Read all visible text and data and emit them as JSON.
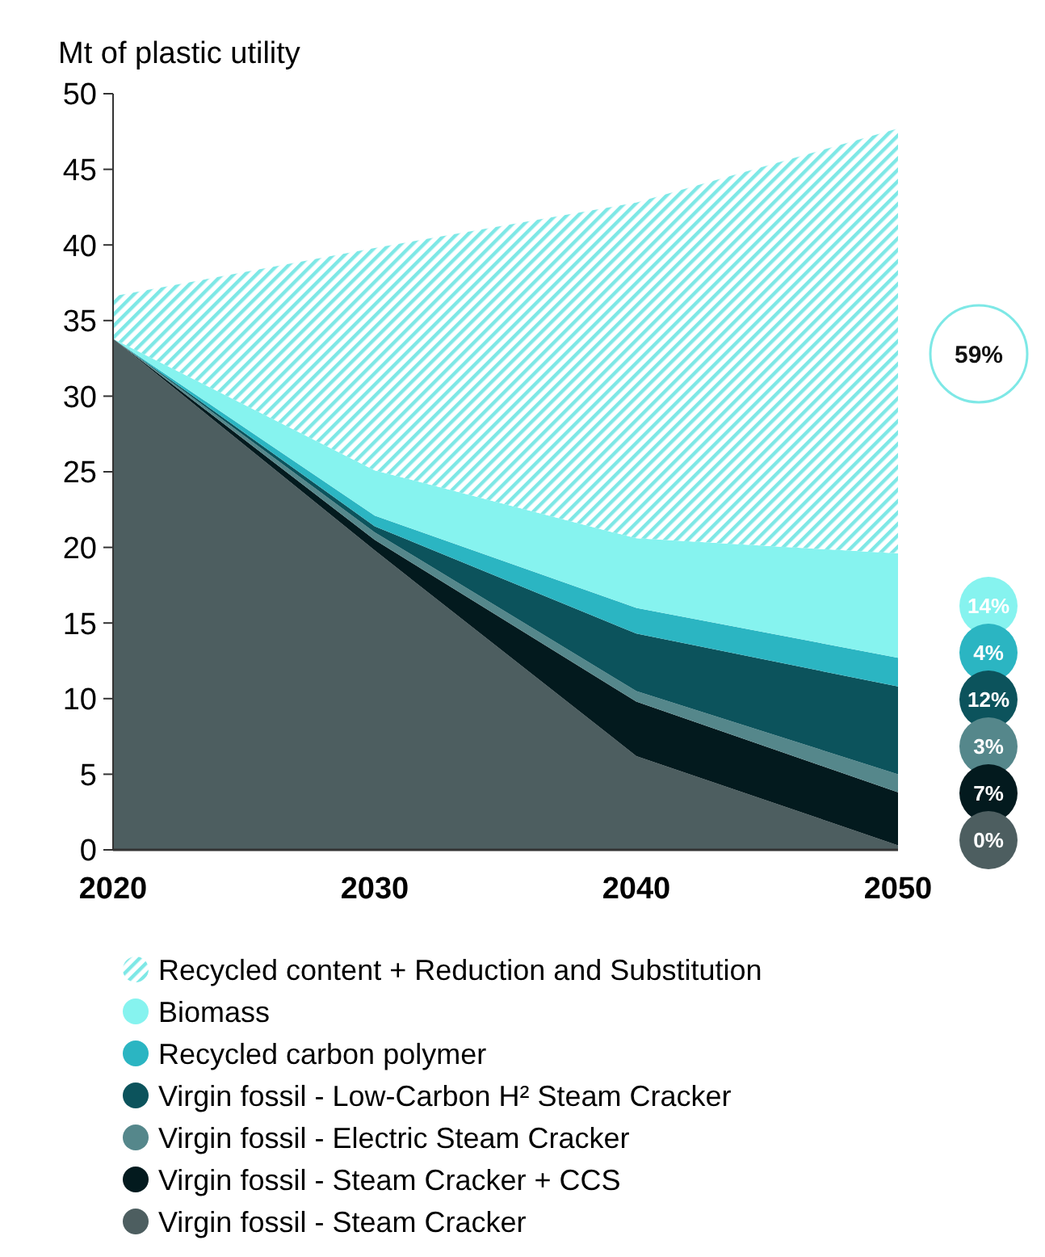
{
  "chart_data": {
    "type": "area",
    "stacked": true,
    "ylabel": "Mt of plastic utility",
    "x": [
      2020,
      2030,
      2040,
      2050
    ],
    "xlim": [
      2020,
      2050
    ],
    "xticks": [
      2020,
      2030,
      2040,
      2050
    ],
    "ylim": [
      0,
      50
    ],
    "yticks": [
      0,
      5,
      10,
      15,
      20,
      25,
      30,
      35,
      40,
      45,
      50
    ],
    "grid": false,
    "legend": "bottom",
    "annotations": [
      "59%",
      "14%",
      "4%",
      "12%",
      "3%",
      "7%",
      "0%"
    ],
    "series": [
      {
        "name": "Virgin fossil - Steam Cracker",
        "color": "#4d5e60",
        "values": [
          33.8,
          19.8,
          6.2,
          0.3
        ]
      },
      {
        "name": "Virgin fossil - Steam Cracker + CCS",
        "color": "#031a1e",
        "values": [
          0,
          0.7,
          3.6,
          3.5
        ]
      },
      {
        "name": "Virgin fossil - Electric Steam Cracker",
        "color": "#55878b",
        "values": [
          0,
          0.5,
          0.7,
          1.2
        ]
      },
      {
        "name": "Virgin fossil - Low-Carbon H² Steam Cracker",
        "color": "#0c535c",
        "values": [
          0,
          0.4,
          3.8,
          5.8
        ]
      },
      {
        "name": "Recycled carbon polymer",
        "color": "#2bb5c2",
        "values": [
          0,
          0.7,
          1.7,
          1.9
        ]
      },
      {
        "name": "Biomass",
        "color": "#86f3ef",
        "values": [
          0,
          3.0,
          4.6,
          6.9
        ]
      },
      {
        "name": "Recycled content + Reduction and Substitution",
        "color": "#7ee8e6",
        "values": [
          2.8,
          14.7,
          22.2,
          28.1
        ]
      }
    ]
  }
}
